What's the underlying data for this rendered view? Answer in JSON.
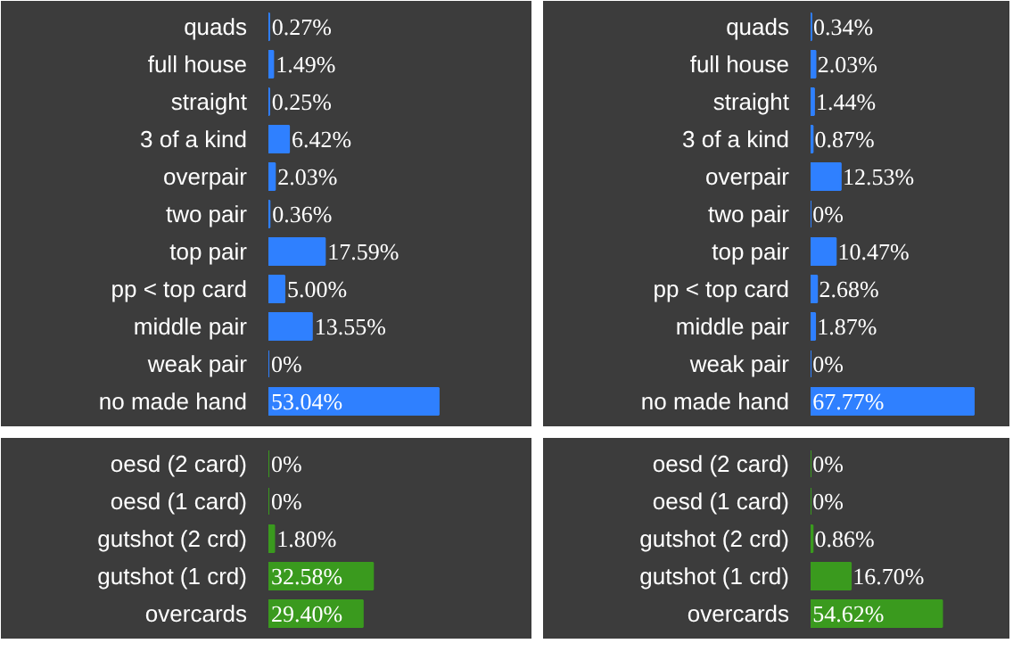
{
  "chart_data": [
    {
      "type": "bar",
      "orientation": "horizontal",
      "tick_labels": "y",
      "xlim": [
        0,
        80
      ],
      "color": "#2f80ff",
      "categories": [
        "quads",
        "full house",
        "straight",
        "3 of a kind",
        "overpair",
        "two pair",
        "top pair",
        "pp < top card",
        "middle pair",
        "weak pair",
        "no made hand"
      ],
      "values": [
        0.27,
        1.49,
        0.25,
        6.42,
        2.03,
        0.36,
        17.59,
        5.0,
        13.55,
        0,
        53.04
      ],
      "value_labels": [
        "0.27%",
        "1.49%",
        "0.25%",
        "6.42%",
        "2.03%",
        "0.36%",
        "17.59%",
        "5.00%",
        "13.55%",
        "0%",
        "53.04%"
      ]
    },
    {
      "type": "bar",
      "orientation": "horizontal",
      "tick_labels": "y",
      "xlim": [
        0,
        80
      ],
      "color": "#3a9a1e",
      "categories": [
        "oesd (2 card)",
        "oesd (1 card)",
        "gutshot (2 crd)",
        "gutshot (1 crd)",
        "overcards"
      ],
      "values": [
        0,
        0,
        1.8,
        32.58,
        29.4
      ],
      "value_labels": [
        "0%",
        "0%",
        "1.80%",
        "32.58%",
        "29.40%"
      ]
    },
    {
      "type": "bar",
      "orientation": "horizontal",
      "tick_labels": "y",
      "xlim": [
        0,
        80
      ],
      "color": "#2f80ff",
      "categories": [
        "quads",
        "full house",
        "straight",
        "3 of a kind",
        "overpair",
        "two pair",
        "top pair",
        "pp < top card",
        "middle pair",
        "weak pair",
        "no made hand"
      ],
      "values": [
        0.34,
        2.03,
        1.44,
        0.87,
        12.53,
        0,
        10.47,
        2.68,
        1.87,
        0,
        67.77
      ],
      "value_labels": [
        "0.34%",
        "2.03%",
        "1.44%",
        "0.87%",
        "12.53%",
        "0%",
        "10.47%",
        "2.68%",
        "1.87%",
        "0%",
        "67.77%"
      ]
    },
    {
      "type": "bar",
      "orientation": "horizontal",
      "tick_labels": "y",
      "xlim": [
        0,
        80
      ],
      "color": "#3a9a1e",
      "categories": [
        "oesd (2 card)",
        "oesd (1 card)",
        "gutshot (2 crd)",
        "gutshot (1 crd)",
        "overcards"
      ],
      "values": [
        0,
        0,
        0.86,
        16.7,
        54.62
      ],
      "value_labels": [
        "0%",
        "0%",
        "0.86%",
        "16.70%",
        "54.62%"
      ]
    }
  ]
}
